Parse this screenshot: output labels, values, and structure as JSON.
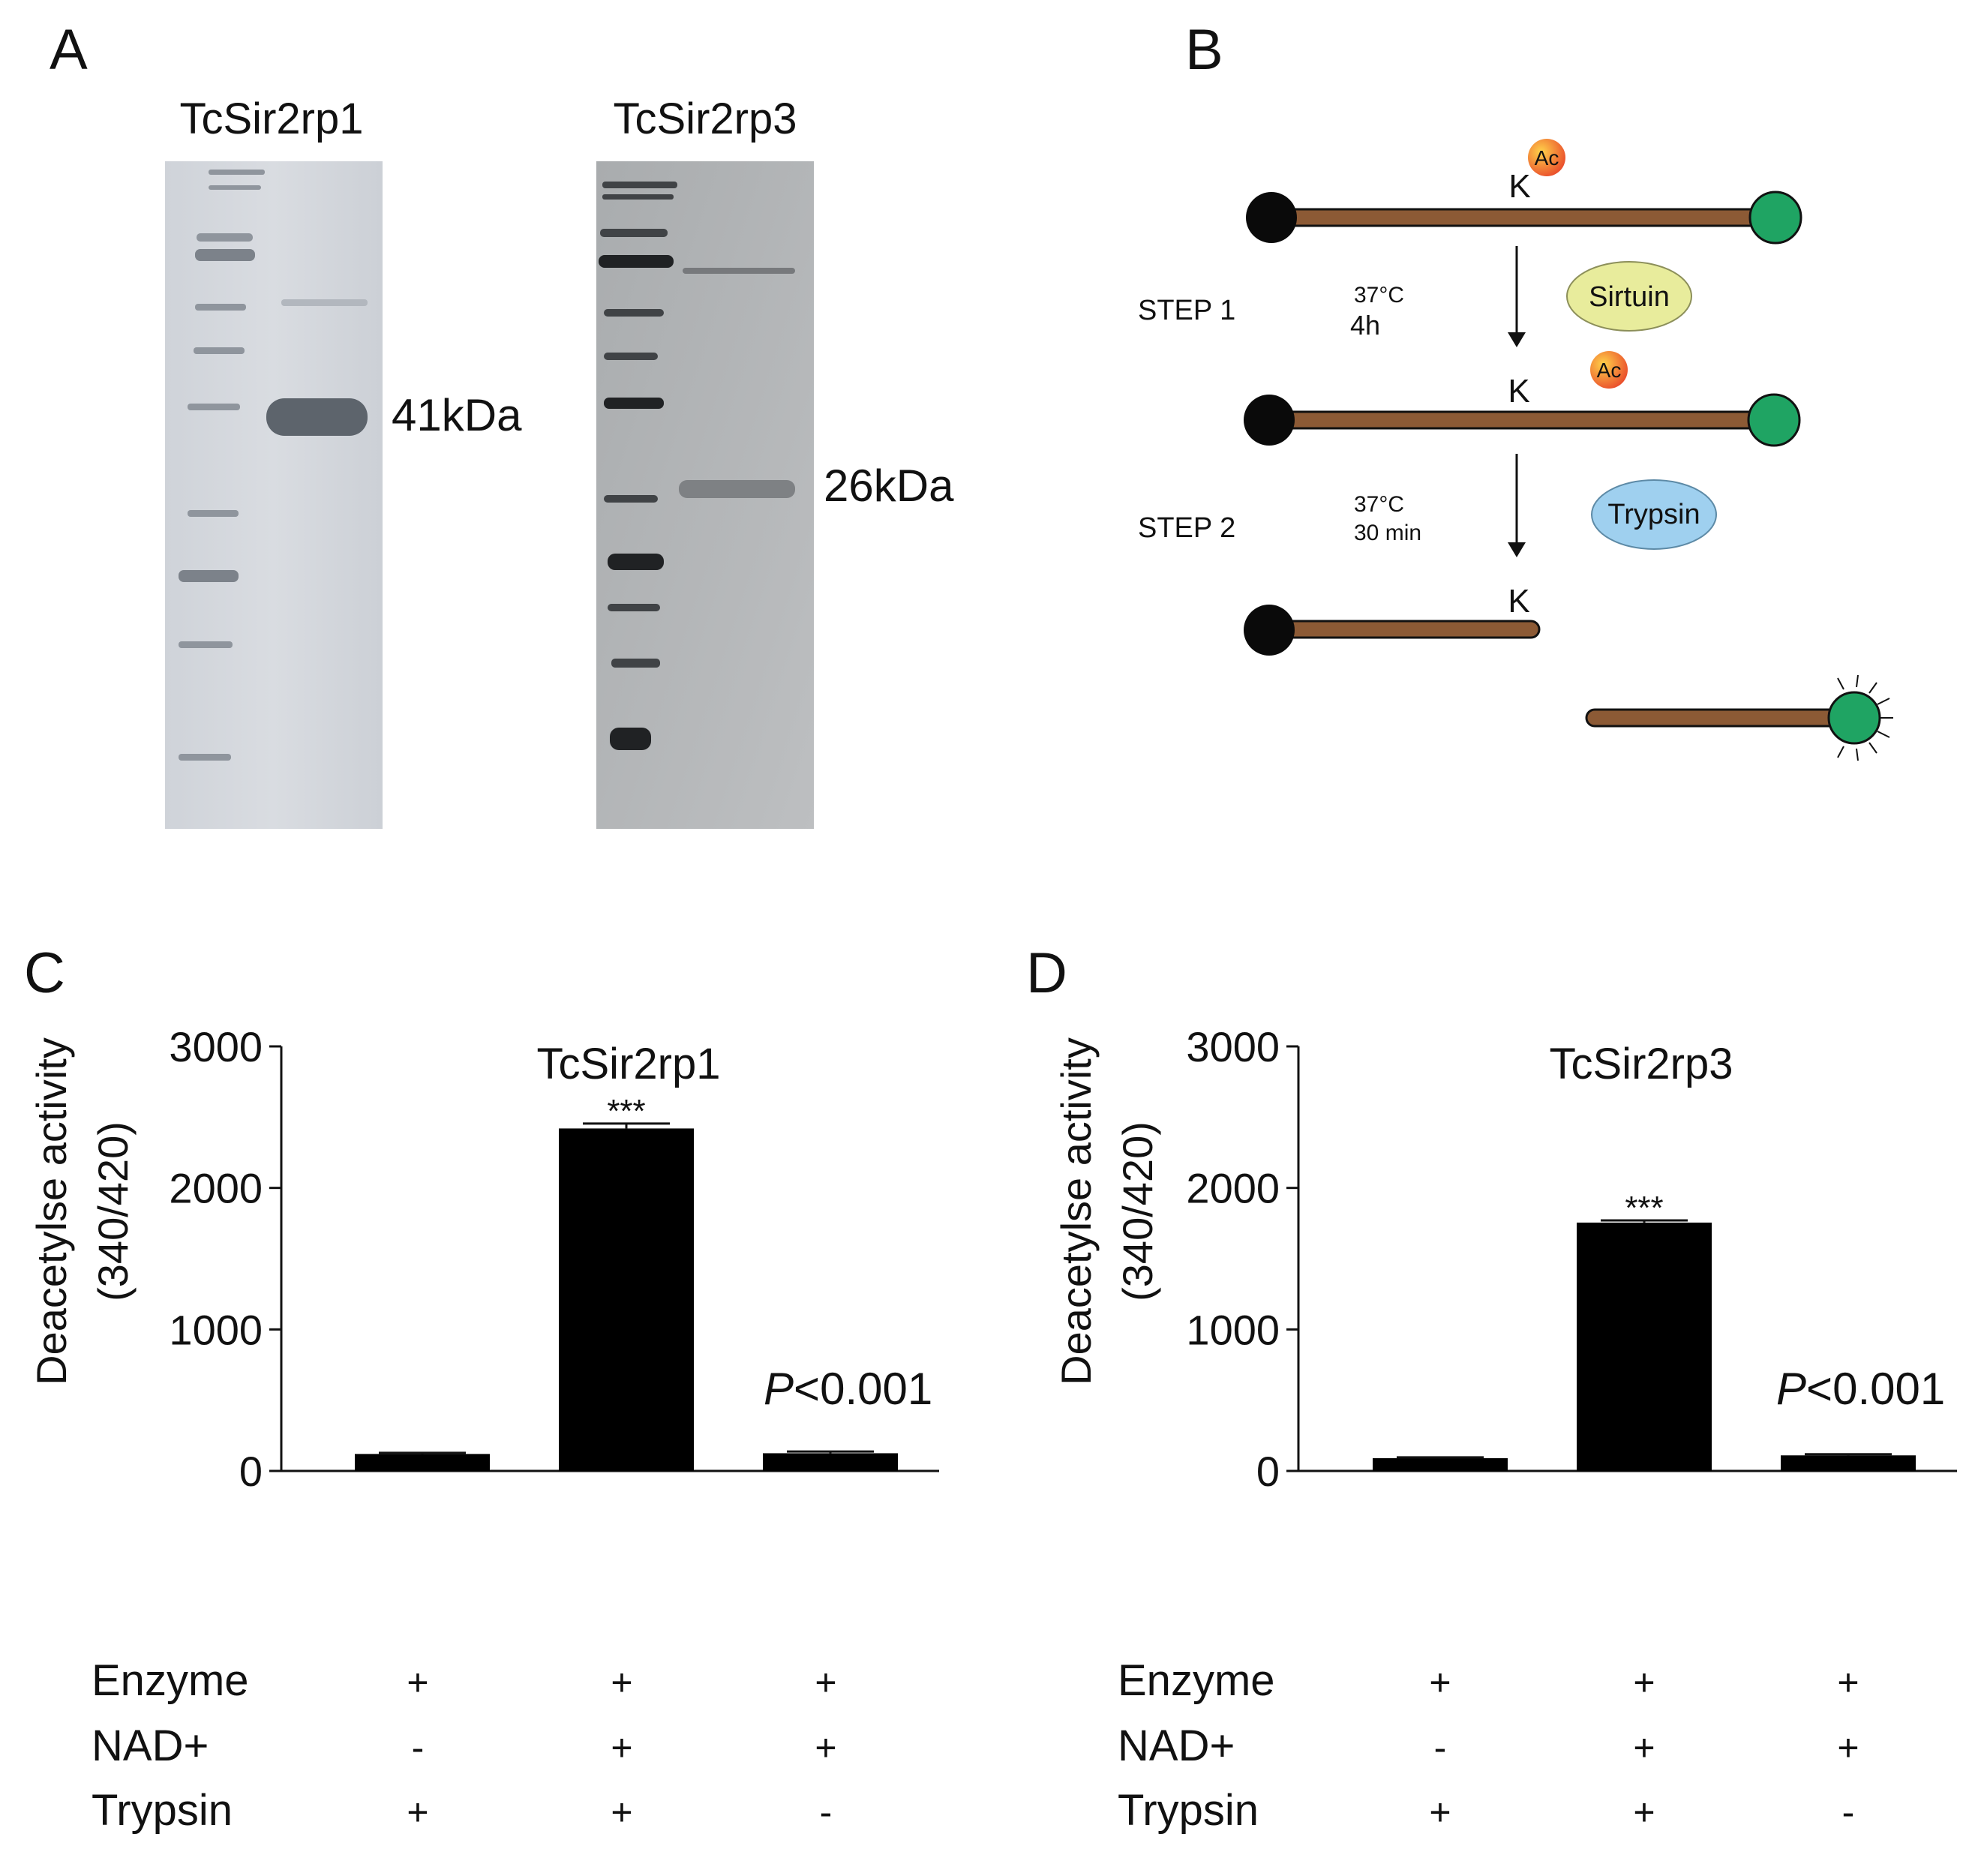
{
  "panels": {
    "a": "A",
    "b": "B",
    "c": "C",
    "d": "D"
  },
  "gels": {
    "left_title": "TcSir2rp1",
    "right_title": "TcSir2rp3",
    "left_band_label": "41kDa",
    "right_band_label": "26kDa"
  },
  "schematic": {
    "ac": "Ac",
    "k": "K",
    "step1": "STEP 1",
    "step1_temp": "37°C",
    "step1_time": "4h",
    "step2": "STEP 2",
    "step2_temp": "37°C",
    "step2_time": "30 min",
    "sirtuin": "Sirtuin",
    "trypsin": "Trypsin",
    "colors": {
      "peptide": "#8c5a35",
      "fluorophore": "#1fa463",
      "quencher": "#0a0a0a",
      "sirtuin": "#e8ec9c",
      "trypsin": "#9fd0ef",
      "ac_badge": "#f2a233"
    }
  },
  "row_labels": [
    "Enzyme",
    "NAD+",
    "Trypsin"
  ],
  "chart_data": [
    {
      "type": "bar",
      "title": "TcSir2rp1",
      "ylabel": "Deacetylse activity\n(340/420)",
      "ylim": [
        0,
        3000
      ],
      "yticks": [
        0,
        1000,
        2000,
        3000
      ],
      "categories": [
        "1",
        "2",
        "3"
      ],
      "conditions": {
        "Enzyme": [
          "+",
          "+",
          "+"
        ],
        "NAD+": [
          "-",
          "+",
          "+"
        ],
        "Trypsin": [
          "+",
          "+",
          "-"
        ]
      },
      "values": [
        120,
        2420,
        125
      ],
      "errors": [
        8,
        35,
        12
      ],
      "significance": [
        "",
        "***",
        ""
      ],
      "annotation": "P<0.001",
      "bar_color": "#000000"
    },
    {
      "type": "bar",
      "title": "TcSir2rp3",
      "ylabel": "Deacetylse activity\n(340/420)",
      "ylim": [
        0,
        3000
      ],
      "yticks": [
        0,
        1000,
        2000,
        3000
      ],
      "categories": [
        "1",
        "2",
        "3"
      ],
      "conditions": {
        "Enzyme": [
          "+",
          "+",
          "+"
        ],
        "NAD+": [
          "-",
          "+",
          "+"
        ],
        "Trypsin": [
          "+",
          "+",
          "-"
        ]
      },
      "values": [
        90,
        1755,
        110
      ],
      "errors": [
        6,
        15,
        8
      ],
      "significance": [
        "",
        "***",
        ""
      ],
      "annotation": "P<0.001",
      "bar_color": "#000000"
    }
  ]
}
